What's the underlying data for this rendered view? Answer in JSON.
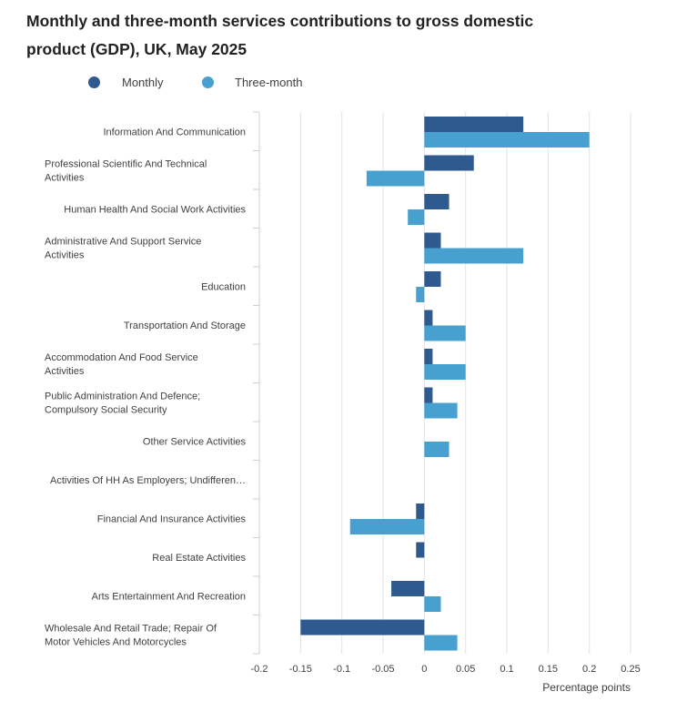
{
  "chart_data": {
    "type": "bar",
    "orientation": "horizontal",
    "title": "Monthly and three-month services contributions to gross domestic product (GDP), UK, May 2025",
    "xlabel": "Percentage points",
    "ylabel": "",
    "xlim": [
      -0.2,
      0.25
    ],
    "xticks": [
      -0.2,
      -0.15,
      -0.1,
      -0.05,
      0,
      0.05,
      0.1,
      0.15,
      0.2,
      0.25
    ],
    "xtick_labels": [
      "-0.2",
      "-0.15",
      "-0.1",
      "-0.05",
      "0",
      "0.05",
      "0.1",
      "0.15",
      "0.2",
      "0.25"
    ],
    "grid": true,
    "legend_position": "top-left",
    "categories": [
      [
        "Information And Communication"
      ],
      [
        "Professional Scientific And Technical",
        "Activities"
      ],
      [
        "Human Health And Social Work Activities"
      ],
      [
        "Administrative And Support Service",
        "Activities"
      ],
      [
        "Education"
      ],
      [
        "Transportation And Storage"
      ],
      [
        "Accommodation And Food Service",
        "Activities"
      ],
      [
        "Public Administration And Defence;",
        "Compulsory Social Security"
      ],
      [
        "Other Service Activities"
      ],
      [
        "Activities Of HH As Employers; Undifferen…"
      ],
      [
        "Financial And Insurance Activities"
      ],
      [
        "Real Estate Activities"
      ],
      [
        "Arts Entertainment And Recreation"
      ],
      [
        "Wholesale And Retail Trade; Repair Of",
        "Motor Vehicles And Motorcycles"
      ]
    ],
    "series": [
      {
        "name": "Monthly",
        "color": "#2e5a8f",
        "values": [
          0.12,
          0.06,
          0.03,
          0.02,
          0.02,
          0.01,
          0.01,
          0.01,
          0,
          0,
          -0.01,
          -0.01,
          -0.04,
          -0.15
        ]
      },
      {
        "name": "Three-month",
        "color": "#47a0cf",
        "values": [
          0.2,
          -0.07,
          -0.02,
          0.12,
          -0.01,
          0.05,
          0.05,
          0.04,
          0.03,
          0,
          -0.09,
          0,
          0.02,
          0.04
        ]
      }
    ]
  }
}
